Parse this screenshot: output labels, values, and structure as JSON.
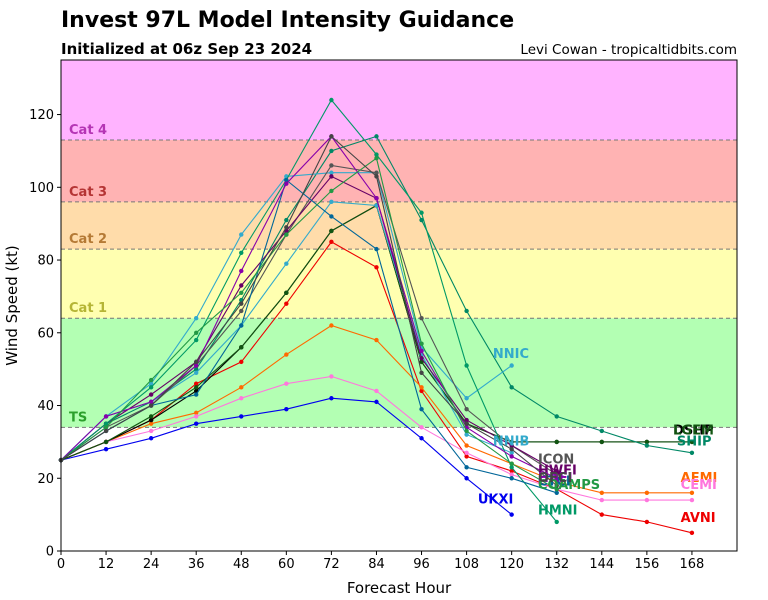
{
  "chart_data": {
    "type": "line",
    "title": "Invest 97L Model Intensity Guidance",
    "subtitle": "Initialized at 06z Sep 23 2024",
    "credit": "Levi Cowan - tropicaltidbits.com",
    "xlabel": "Forecast Hour",
    "ylabel": "Wind Speed (kt)",
    "xlim": [
      0,
      180
    ],
    "ylim": [
      0,
      135
    ],
    "xticks": [
      0,
      12,
      24,
      36,
      48,
      60,
      72,
      84,
      96,
      108,
      120,
      132,
      144,
      156,
      168
    ],
    "yticks": [
      0,
      20,
      40,
      60,
      80,
      100,
      120
    ],
    "bands": [
      {
        "name": "TS",
        "from": 34,
        "to": 64,
        "color": "#b3ffb3",
        "label_color": "#2ca02c"
      },
      {
        "name": "Cat 1",
        "from": 64,
        "to": 83,
        "color": "#ffffb0",
        "label_color": "#b5b535"
      },
      {
        "name": "Cat 2",
        "from": 83,
        "to": 96,
        "color": "#ffdcaa",
        "label_color": "#b57a35"
      },
      {
        "name": "Cat 3",
        "from": 96,
        "to": 113,
        "color": "#ffb3b3",
        "label_color": "#b53535"
      },
      {
        "name": "Cat 4",
        "from": 113,
        "to": 135,
        "color": "#ffb3ff",
        "label_color": "#b535b5"
      }
    ],
    "series": [
      {
        "name": "UKXI",
        "color": "#0000ee",
        "x": [
          0,
          12,
          24,
          36,
          48,
          60,
          72,
          84,
          96,
          108,
          120
        ],
        "values": [
          25,
          28,
          31,
          35,
          37,
          39,
          42,
          41,
          31,
          20,
          10
        ],
        "label_x": 111,
        "label_y": 13
      },
      {
        "name": "AVNI",
        "color": "#ee0000",
        "x": [
          0,
          12,
          24,
          36,
          48,
          60,
          72,
          84,
          96,
          108,
          120,
          132,
          144,
          156,
          168
        ],
        "values": [
          25,
          30,
          36,
          46,
          52,
          68,
          85,
          78,
          44,
          26,
          22,
          17,
          10,
          8,
          5
        ],
        "label_x": 165,
        "label_y": 8
      },
      {
        "name": "AEMI",
        "color": "#ff6a00",
        "x": [
          0,
          12,
          24,
          36,
          48,
          60,
          72,
          84,
          96,
          108,
          120,
          132,
          144,
          156,
          168
        ],
        "values": [
          25,
          30,
          35,
          38,
          45,
          54,
          62,
          58,
          45,
          29,
          24,
          19,
          16,
          16,
          16
        ],
        "label_x": 165,
        "label_y": 19
      },
      {
        "name": "CEMI",
        "color": "#ff77dd",
        "x": [
          0,
          12,
          24,
          36,
          48,
          60,
          72,
          84,
          96,
          108,
          120,
          132,
          144,
          156,
          168
        ],
        "values": [
          25,
          30,
          33,
          37,
          42,
          46,
          48,
          44,
          34,
          27,
          21,
          17,
          14,
          14,
          14
        ],
        "label_x": 165,
        "label_y": 17
      },
      {
        "name": "DSHP",
        "color": "#000000",
        "x": [
          0,
          12,
          24,
          36,
          48,
          60,
          72,
          84,
          96,
          108,
          120,
          132,
          144,
          156,
          168
        ],
        "values": [
          25,
          30,
          36,
          44,
          56,
          71,
          88,
          95,
          52,
          35,
          30,
          30,
          30,
          30,
          30
        ],
        "label_x": 163,
        "label_y": 32
      },
      {
        "name": "LGEM",
        "color": "#115511",
        "x": [
          0,
          12,
          24,
          36,
          48,
          60,
          72,
          84,
          96,
          108,
          120,
          132,
          144,
          156,
          168
        ],
        "values": [
          25,
          30,
          37,
          45,
          56,
          71,
          88,
          95,
          52,
          35,
          30,
          30,
          30,
          30,
          30
        ],
        "label_x": 163,
        "label_y": 32
      },
      {
        "name": "SHIP",
        "color": "#008866",
        "x": [
          0,
          12,
          24,
          36,
          48,
          60,
          72,
          84,
          96,
          108,
          120,
          132,
          144,
          156,
          168
        ],
        "values": [
          25,
          35,
          41,
          50,
          69,
          91,
          110,
          114,
          91,
          66,
          45,
          37,
          33,
          29,
          27
        ],
        "label_x": 164,
        "label_y": 29
      },
      {
        "name": "NNIC",
        "color": "#33aacc",
        "x": [
          0,
          12,
          24,
          36,
          48,
          60,
          72,
          84,
          96,
          108,
          120
        ],
        "values": [
          25,
          37,
          46,
          64,
          87,
          103,
          104,
          104,
          56,
          42,
          51
        ],
        "label_x": 115,
        "label_y": 53
      },
      {
        "name": "NNIB",
        "color": "#33aacc",
        "x": [
          0,
          12,
          24,
          36,
          48,
          60,
          72,
          84,
          96,
          108,
          120
        ],
        "values": [
          25,
          37,
          41,
          49,
          62,
          79,
          96,
          95,
          54,
          32,
          27
        ],
        "label_x": 115,
        "label_y": 29
      },
      {
        "name": "ICON",
        "color": "#555555",
        "x": [
          0,
          12,
          24,
          36,
          48,
          60,
          72,
          84,
          96,
          108,
          120,
          132
        ],
        "values": [
          25,
          34,
          40,
          51,
          66,
          87,
          106,
          104,
          64,
          39,
          29,
          21
        ],
        "label_x": 127,
        "label_y": 24
      },
      {
        "name": "HWFI",
        "color": "#660066",
        "x": [
          0,
          12,
          24,
          36,
          48,
          60,
          72,
          84,
          96,
          108,
          120,
          132
        ],
        "values": [
          25,
          35,
          43,
          52,
          73,
          88,
          103,
          97,
          53,
          36,
          29,
          22
        ],
        "label_x": 127,
        "label_y": 21
      },
      {
        "name": "HMNI",
        "color": "#009966",
        "x": [
          0,
          12,
          24,
          36,
          48,
          60,
          72,
          84,
          96,
          108,
          120,
          132
        ],
        "values": [
          25,
          35,
          45,
          58,
          82,
          102,
          124,
          109,
          93,
          51,
          23,
          8
        ],
        "label_x": 127,
        "label_y": 10
      },
      {
        "name": "CTCI",
        "color": "#006699",
        "x": [
          0,
          12,
          24,
          36,
          48,
          60,
          72,
          84,
          96,
          108,
          120,
          132
        ],
        "values": [
          25,
          33,
          40,
          43,
          62,
          102,
          92,
          83,
          39,
          23,
          20,
          16
        ],
        "label_x": 127,
        "label_y": 18
      },
      {
        "name": "HAFI",
        "color": "#8800aa",
        "x": [
          0,
          12,
          24,
          36,
          48,
          60,
          72,
          84,
          96,
          108,
          120,
          132
        ],
        "values": [
          25,
          37,
          41,
          51,
          77,
          101,
          114,
          97,
          55,
          34,
          26,
          20
        ],
        "label_x": 127,
        "label_y": 19
      },
      {
        "name": "COAMPS",
        "color": "#229944",
        "x": [
          0,
          12,
          24,
          36,
          48,
          60,
          72,
          84,
          96,
          108,
          120,
          132
        ],
        "values": [
          25,
          34,
          47,
          60,
          71,
          87,
          99,
          108,
          57,
          33,
          24,
          17
        ],
        "label_x": 127,
        "label_y": 17
      },
      {
        "name": "OFCI",
        "color": "#444444",
        "x": [
          0,
          12,
          24,
          36,
          48,
          60,
          72,
          84,
          96,
          108,
          120,
          132
        ],
        "values": [
          25,
          33,
          40,
          52,
          68,
          89,
          114,
          103,
          49,
          35,
          28,
          18
        ],
        "label_x": 127,
        "label_y": 19
      }
    ]
  }
}
